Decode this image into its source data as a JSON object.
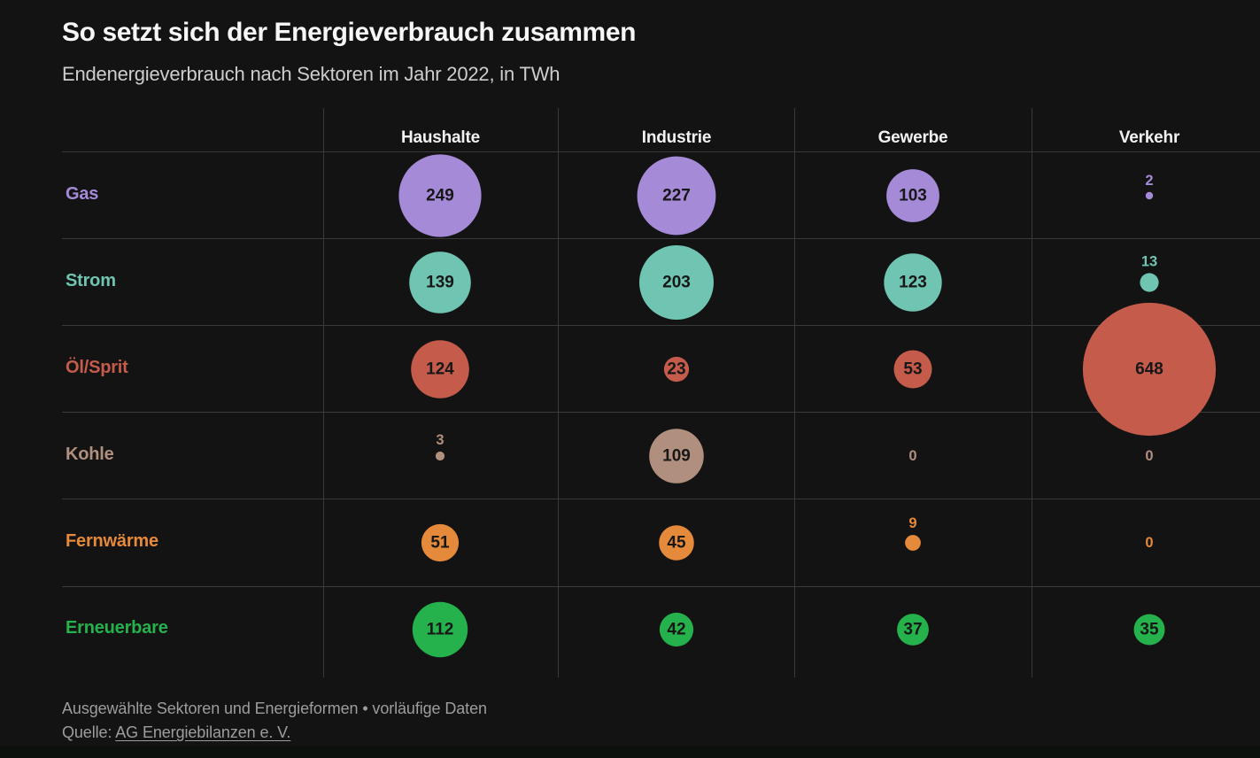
{
  "header": {
    "title": "So setzt sich der Energieverbrauch zusammen",
    "subtitle": "Endenergieverbrauch nach Sektoren im Jahr 2022, in TWh"
  },
  "footer": {
    "note": "Ausgewählte Sektoren und Energieformen • vorläufige Daten",
    "source_prefix": "Quelle: ",
    "source_link": "AG Energiebilanzen e. V."
  },
  "chart_data": {
    "type": "bubble",
    "title": "So setzt sich der Energieverbrauch zusammen",
    "subtitle": "Endenergieverbrauch nach Sektoren im Jahr 2022, in TWh",
    "unit": "TWh",
    "columns": [
      "Haushalte",
      "Industrie",
      "Gewerbe",
      "Verkehr"
    ],
    "column_ids": [
      "haushalte",
      "industrie",
      "gewerbe",
      "verkehr"
    ],
    "rows": [
      {
        "id": "gas",
        "label": "Gas",
        "color": "#a58ad8",
        "values": [
          249,
          227,
          103,
          2
        ]
      },
      {
        "id": "strom",
        "label": "Strom",
        "color": "#6fc5b2",
        "values": [
          139,
          203,
          123,
          13
        ]
      },
      {
        "id": "oel-sprit",
        "label": "Öl/Sprit",
        "color": "#c45b4b",
        "values": [
          124,
          23,
          53,
          648
        ]
      },
      {
        "id": "kohle",
        "label": "Kohle",
        "color": "#b08f7e",
        "values": [
          3,
          109,
          0,
          0
        ]
      },
      {
        "id": "fernwaerme",
        "label": "Fernwärme",
        "color": "#e5893a",
        "values": [
          51,
          45,
          9,
          0
        ]
      },
      {
        "id": "erneuerbare",
        "label": "Erneuerbare",
        "color": "#25b14b",
        "values": [
          112,
          42,
          37,
          35
        ]
      }
    ],
    "size_encoding": "circle area proportional to value (r = 2.95 * sqrt(value) px)",
    "value_label_placement": "inside bubble for large values, above bubble for small values, plain colored text for zero",
    "legend_position": "none",
    "grid": true
  }
}
